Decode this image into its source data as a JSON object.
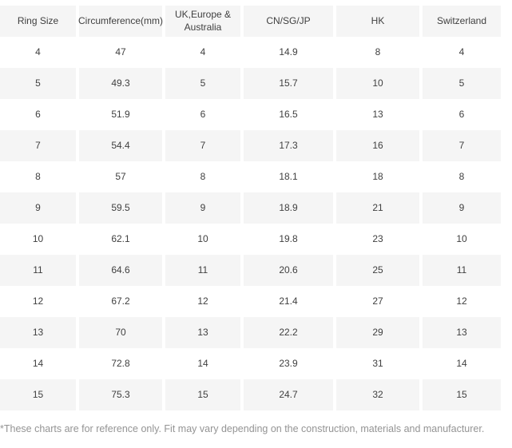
{
  "table": {
    "headers": [
      "Ring Size",
      "Circumference(mm)",
      "UK,Europe &\nAustralia",
      "CN/SG/JP",
      "HK",
      "Switzerland"
    ],
    "rows": [
      [
        "4",
        "47",
        "4",
        "14.9",
        "8",
        "4"
      ],
      [
        "5",
        "49.3",
        "5",
        "15.7",
        "10",
        "5"
      ],
      [
        "6",
        "51.9",
        "6",
        "16.5",
        "13",
        "6"
      ],
      [
        "7",
        "54.4",
        "7",
        "17.3",
        "16",
        "7"
      ],
      [
        "8",
        "57",
        "8",
        "18.1",
        "18",
        "8"
      ],
      [
        "9",
        "59.5",
        "9",
        "18.9",
        "21",
        "9"
      ],
      [
        "10",
        "62.1",
        "10",
        "19.8",
        "23",
        "10"
      ],
      [
        "11",
        "64.6",
        "11",
        "20.6",
        "25",
        "11"
      ],
      [
        "12",
        "67.2",
        "12",
        "21.4",
        "27",
        "12"
      ],
      [
        "13",
        "70",
        "13",
        "22.2",
        "29",
        "13"
      ],
      [
        "14",
        "72.8",
        "14",
        "23.9",
        "31",
        "14"
      ],
      [
        "15",
        "75.3",
        "15",
        "24.7",
        "32",
        "15"
      ]
    ]
  },
  "footnote": "*These charts are for reference only. Fit may vary depending on the construction, materials and manufacturer.",
  "colors": {
    "row_stripe": "#f5f5f5",
    "table_text": "#404040",
    "footnote_text": "#949494",
    "background": "#ffffff"
  }
}
